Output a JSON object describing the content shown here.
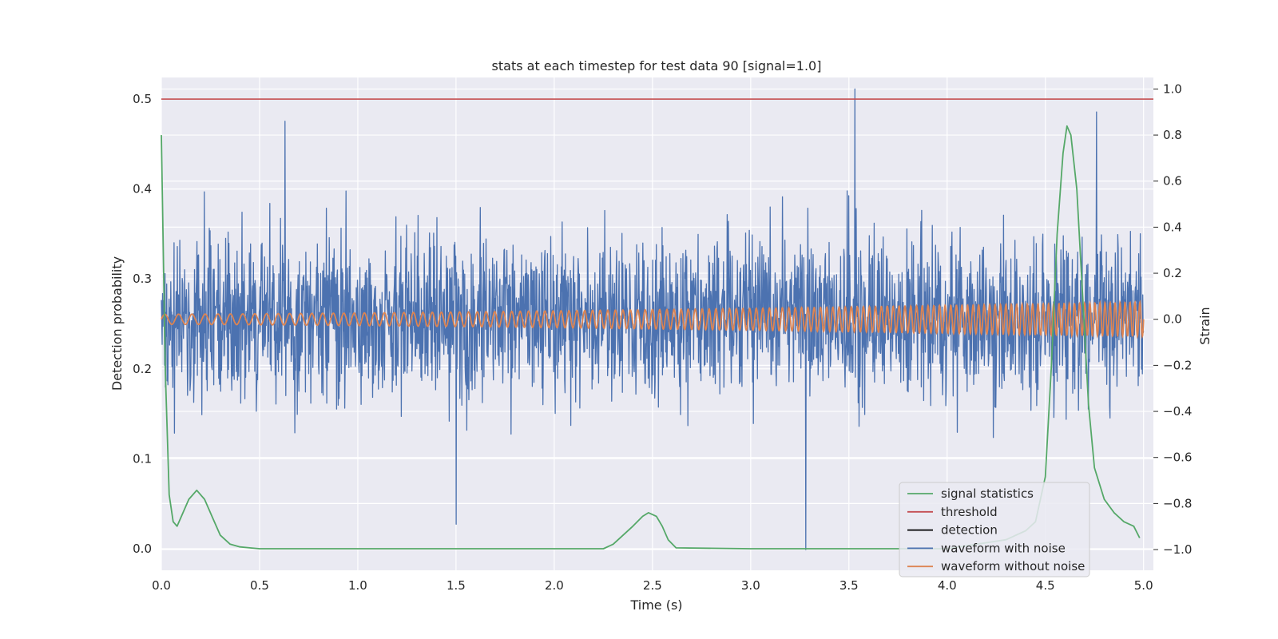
{
  "chart_data": {
    "type": "line",
    "title": "stats at each timestep for test data 90 [signal=1.0]",
    "xlabel": "Time (s)",
    "ylabel_left": "Detection probability",
    "ylabel_right": "Strain",
    "xlim": [
      0.0,
      5.05
    ],
    "ylim_left": [
      -0.024,
      0.524
    ],
    "ylim_right": [
      -1.09,
      1.05
    ],
    "x_ticks": [
      0.0,
      0.5,
      1.0,
      1.5,
      2.0,
      2.5,
      3.0,
      3.5,
      4.0,
      4.5,
      5.0
    ],
    "x_tick_labels": [
      "0.0",
      "0.5",
      "1.0",
      "1.5",
      "2.0",
      "2.5",
      "3.0",
      "3.5",
      "4.0",
      "4.5",
      "5.0"
    ],
    "y_left_ticks": [
      0.0,
      0.1,
      0.2,
      0.3,
      0.4,
      0.5
    ],
    "y_left_tick_labels": [
      "0.0",
      "0.1",
      "0.2",
      "0.3",
      "0.4",
      "0.5"
    ],
    "y_right_ticks": [
      -1.0,
      -0.8,
      -0.6,
      -0.4,
      -0.2,
      0.0,
      0.2,
      0.4,
      0.6,
      0.8,
      1.0
    ],
    "y_right_tick_labels": [
      "−1.0",
      "−0.8",
      "−0.6",
      "−0.4",
      "−0.2",
      "0.0",
      "0.2",
      "0.4",
      "0.6",
      "0.8",
      "1.0"
    ],
    "grid": true,
    "legend_position": "lower-right",
    "series": [
      {
        "name": "signal statistics",
        "axis": "left",
        "color": "#55a868",
        "x": [
          0.0,
          0.02,
          0.04,
          0.06,
          0.08,
          0.1,
          0.14,
          0.18,
          0.22,
          0.26,
          0.3,
          0.35,
          0.4,
          0.45,
          0.5,
          0.6,
          1.0,
          1.5,
          2.0,
          2.25,
          2.3,
          2.35,
          2.4,
          2.45,
          2.48,
          2.52,
          2.55,
          2.58,
          2.62,
          3.0,
          3.5,
          3.8,
          4.0,
          4.3,
          4.4,
          4.45,
          4.5,
          4.53,
          4.56,
          4.59,
          4.61,
          4.63,
          4.66,
          4.69,
          4.72,
          4.75,
          4.8,
          4.85,
          4.9,
          4.95,
          4.98
        ],
        "y": [
          0.46,
          0.2,
          0.06,
          0.03,
          0.025,
          0.035,
          0.055,
          0.065,
          0.055,
          0.035,
          0.015,
          0.005,
          0.002,
          0.001,
          0.0,
          0.0,
          0.0,
          0.0,
          0.0,
          0.0,
          0.005,
          0.015,
          0.025,
          0.036,
          0.04,
          0.036,
          0.025,
          0.01,
          0.001,
          0.0,
          0.0,
          0.0,
          0.0,
          0.01,
          0.02,
          0.03,
          0.08,
          0.2,
          0.35,
          0.44,
          0.47,
          0.46,
          0.4,
          0.28,
          0.16,
          0.09,
          0.055,
          0.04,
          0.03,
          0.025,
          0.012
        ]
      },
      {
        "name": "threshold",
        "axis": "left",
        "color": "#c44e52",
        "x": [
          0.0,
          5.05
        ],
        "y": [
          0.5,
          0.5
        ]
      },
      {
        "name": "detection",
        "axis": "left",
        "color": "#000000",
        "x": [],
        "y": []
      },
      {
        "name": "waveform with noise",
        "axis": "right",
        "color": "#4c72b0",
        "note_values": "dense noisy strain series between about -1.0 and 1.0, centered near 0.0, sampled across 0.0-5.0 s",
        "x_range": [
          0.0,
          5.0
        ],
        "amplitude_typical": 0.35,
        "extremes": [
          {
            "x": 0.63,
            "y": 0.86
          },
          {
            "x": 1.5,
            "y": -0.89
          },
          {
            "x": 3.28,
            "y": -1.0
          },
          {
            "x": 3.53,
            "y": 1.0
          },
          {
            "x": 4.76,
            "y": 0.9
          }
        ]
      },
      {
        "name": "waveform without noise",
        "axis": "right",
        "color": "#dd8452",
        "note_values": "chirp sinusoid centered at 0.0 with amplitude growing from ~0.02 to ~0.07 and increasing frequency",
        "x_range": [
          0.0,
          5.0
        ],
        "amplitude_start": 0.022,
        "amplitude_end": 0.075,
        "cycles_start_per_s": 14,
        "cycles_end_per_s": 40
      }
    ]
  }
}
